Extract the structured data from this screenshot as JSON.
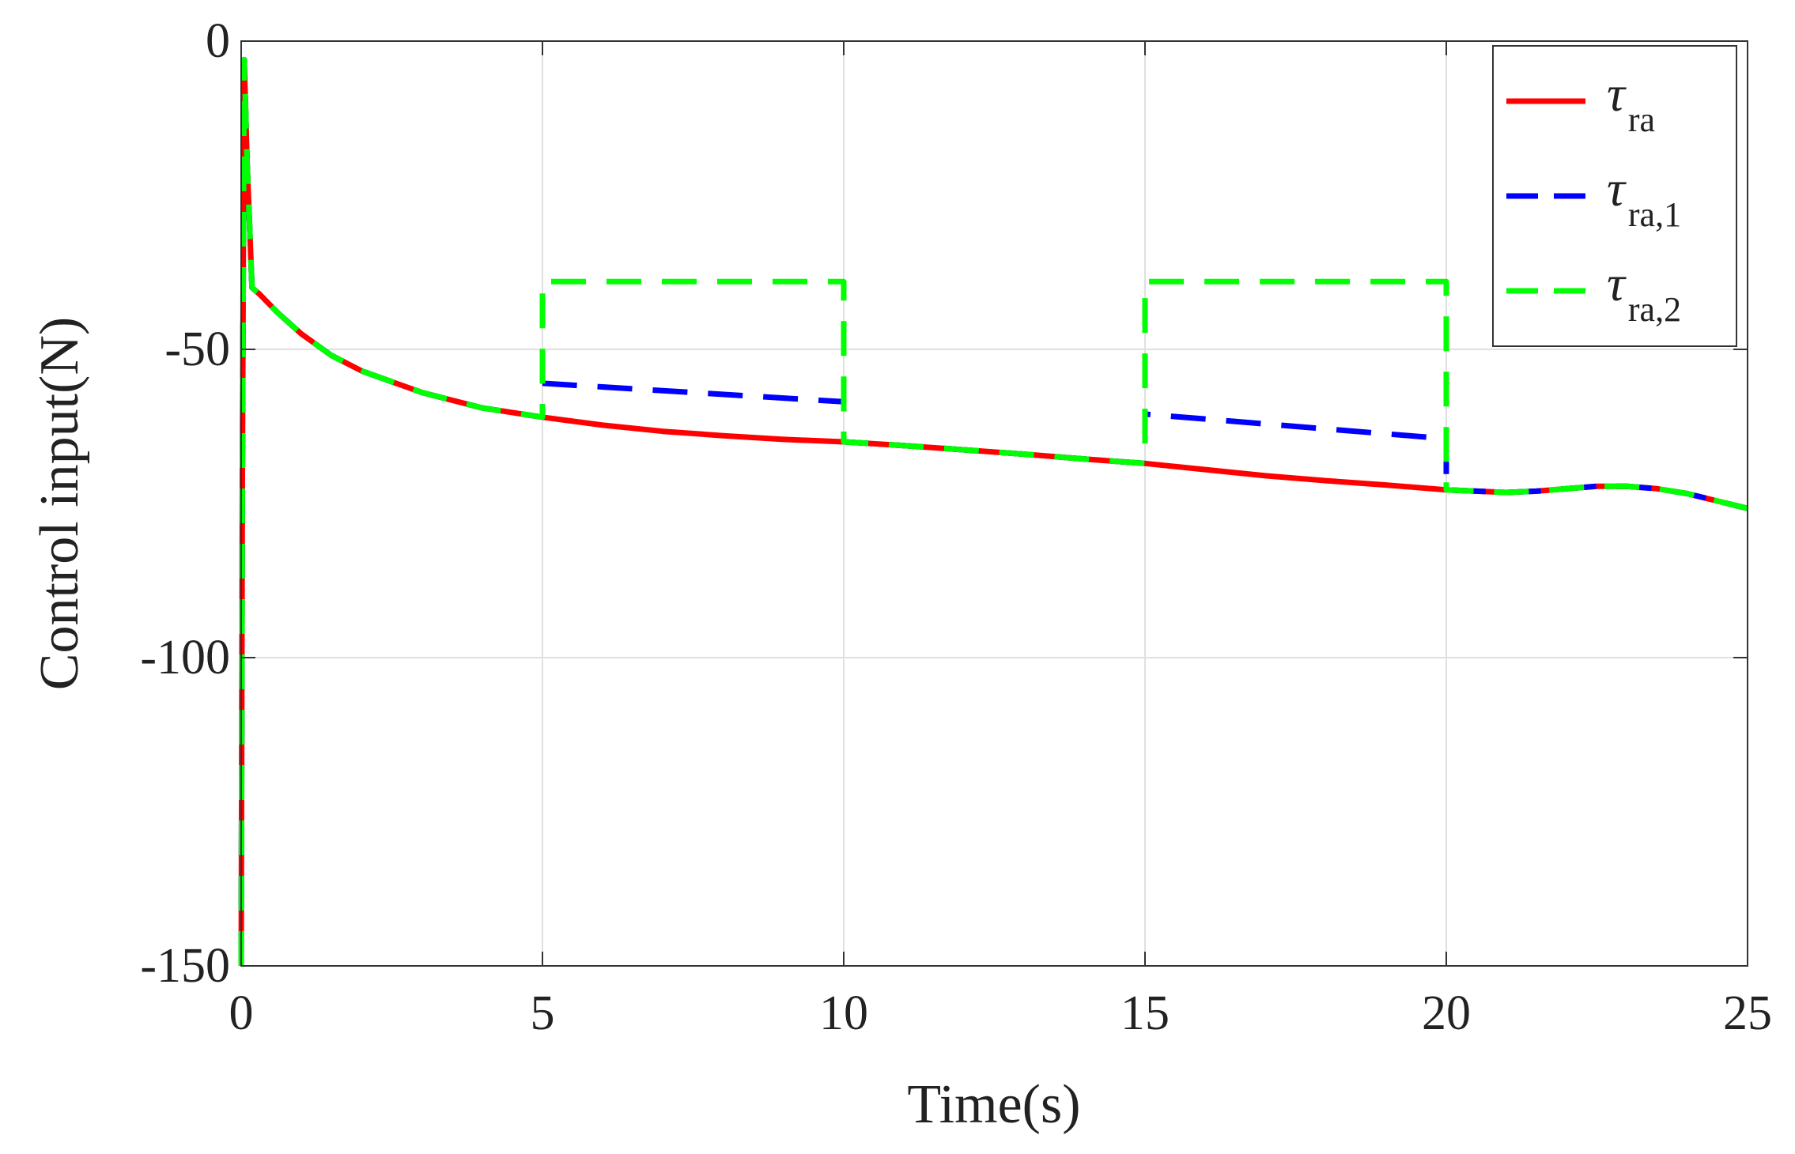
{
  "chart_data": {
    "type": "line",
    "title": "",
    "xlabel": "Time(s)",
    "ylabel": "Control input(N)",
    "xlim": [
      0,
      25
    ],
    "ylim": [
      -150,
      0
    ],
    "xticks": [
      0,
      5,
      10,
      15,
      20,
      25
    ],
    "yticks": [
      0,
      -50,
      -100,
      -150
    ],
    "xtick_labels": [
      "0",
      "5",
      "10",
      "15",
      "20",
      "25"
    ],
    "ytick_labels": [
      "0",
      "-50",
      "-100",
      "-150"
    ],
    "grid": true,
    "legend_position": "top-right",
    "series": [
      {
        "name_symbol": "τ",
        "name_subscript": "ra",
        "color": "#ff0000",
        "style": "solid",
        "points": [
          [
            0,
            -150
          ],
          [
            0.02,
            -70
          ],
          [
            0.05,
            -3
          ],
          [
            0.1,
            -20
          ],
          [
            0.18,
            -40
          ],
          [
            0.3,
            -41
          ],
          [
            0.6,
            -44
          ],
          [
            1,
            -47.5
          ],
          [
            1.5,
            -51
          ],
          [
            2,
            -53.5
          ],
          [
            3,
            -57
          ],
          [
            4,
            -59.5
          ],
          [
            5,
            -61
          ],
          [
            6,
            -62.3
          ],
          [
            7,
            -63.3
          ],
          [
            8,
            -64
          ],
          [
            9,
            -64.6
          ],
          [
            10,
            -65
          ],
          [
            11,
            -65.6
          ],
          [
            12,
            -66.3
          ],
          [
            13,
            -67
          ],
          [
            14,
            -67.8
          ],
          [
            15,
            -68.5
          ],
          [
            16,
            -69.5
          ],
          [
            17,
            -70.5
          ],
          [
            18,
            -71.3
          ],
          [
            19,
            -72
          ],
          [
            20,
            -72.8
          ],
          [
            20.5,
            -73
          ],
          [
            21,
            -73.2
          ],
          [
            21.5,
            -73
          ],
          [
            22,
            -72.6
          ],
          [
            22.5,
            -72.2
          ],
          [
            23,
            -72.2
          ],
          [
            23.5,
            -72.6
          ],
          [
            24,
            -73.4
          ],
          [
            24.5,
            -74.6
          ],
          [
            25,
            -75.8
          ]
        ]
      },
      {
        "name_symbol": "τ",
        "name_subscript": "ra,1",
        "color": "#0000ff",
        "style": "dashed",
        "points": [
          [
            0,
            -150
          ],
          [
            0.02,
            -70
          ],
          [
            0.05,
            -3
          ],
          [
            0.1,
            -20
          ],
          [
            0.18,
            -40
          ],
          [
            0.3,
            -41
          ],
          [
            0.6,
            -44
          ],
          [
            1,
            -47.5
          ],
          [
            1.5,
            -51
          ],
          [
            2,
            -53.5
          ],
          [
            3,
            -57
          ],
          [
            4,
            -59.5
          ],
          [
            5,
            -61
          ],
          [
            5,
            -55.5
          ],
          [
            10,
            -58.5
          ],
          [
            10,
            -65
          ],
          [
            11,
            -65.6
          ],
          [
            12,
            -66.3
          ],
          [
            13,
            -67
          ],
          [
            14,
            -67.8
          ],
          [
            15,
            -68.5
          ],
          [
            15,
            -60.5
          ],
          [
            20,
            -64.5
          ],
          [
            20,
            -72.8
          ],
          [
            20.5,
            -73
          ],
          [
            21,
            -73.2
          ],
          [
            21.5,
            -73
          ],
          [
            22,
            -72.6
          ],
          [
            22.5,
            -72.2
          ],
          [
            23,
            -72.2
          ],
          [
            23.5,
            -72.6
          ],
          [
            24,
            -73.4
          ],
          [
            24.5,
            -74.6
          ],
          [
            25,
            -75.8
          ]
        ]
      },
      {
        "name_symbol": "τ",
        "name_subscript": "ra,2",
        "color": "#00ff00",
        "style": "dashed",
        "points": [
          [
            0,
            -150
          ],
          [
            0.02,
            -70
          ],
          [
            0.05,
            -3
          ],
          [
            0.1,
            -20
          ],
          [
            0.18,
            -40
          ],
          [
            0.3,
            -41
          ],
          [
            0.6,
            -44
          ],
          [
            1,
            -47.5
          ],
          [
            1.5,
            -51
          ],
          [
            2,
            -53.5
          ],
          [
            3,
            -57
          ],
          [
            4,
            -59.5
          ],
          [
            5,
            -61
          ],
          [
            5,
            -39
          ],
          [
            10,
            -39
          ],
          [
            10,
            -65
          ],
          [
            11,
            -65.6
          ],
          [
            12,
            -66.3
          ],
          [
            13,
            -67
          ],
          [
            14,
            -67.8
          ],
          [
            15,
            -68.5
          ],
          [
            15,
            -39
          ],
          [
            20,
            -39
          ],
          [
            20,
            -72.8
          ],
          [
            20.5,
            -73
          ],
          [
            21,
            -73.2
          ],
          [
            21.5,
            -73
          ],
          [
            22,
            -72.6
          ],
          [
            22.5,
            -72.2
          ],
          [
            23,
            -72.2
          ],
          [
            23.5,
            -72.6
          ],
          [
            24,
            -73.4
          ],
          [
            24.5,
            -74.6
          ],
          [
            25,
            -75.8
          ]
        ]
      }
    ]
  }
}
